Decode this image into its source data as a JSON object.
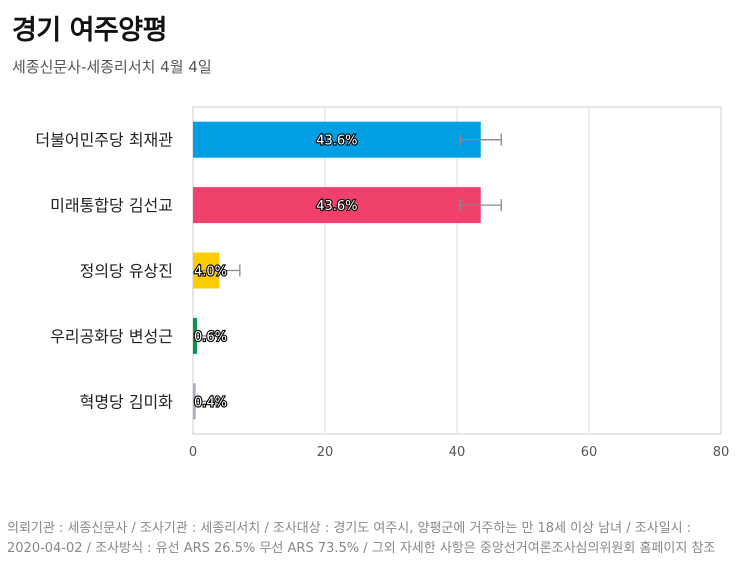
{
  "header": {
    "title": "경기 여주양평",
    "subtitle": "세종신문사-세종리서치 4월 4일"
  },
  "chart_data": {
    "type": "bar",
    "orientation": "horizontal",
    "categories": [
      "더불어민주당 최재관",
      "미래통합당 김선교",
      "정의당 유상진",
      "우리공화당 변성근",
      "혁명당 김미화"
    ],
    "values": [
      43.6,
      43.6,
      4.0,
      0.6,
      0.4
    ],
    "value_labels": [
      "43.6%",
      "43.6%",
      "4.0%",
      "0.6%",
      "0.4%"
    ],
    "colors": [
      "#009fe3",
      "#f0416d",
      "#ffcc00",
      "#00994c",
      "#b0a6cc"
    ],
    "error_margin": 3.1,
    "xlim": [
      0,
      80
    ],
    "xticks": [
      0,
      20,
      40,
      60,
      80
    ],
    "grid": true,
    "legend": "none"
  },
  "footnote": "의뢰기관 : 세종신문사 / 조사기관 : 세종리서치 / 조사대상 : 경기도 여주시, 양평군에 거주하는 만 18세 이상 남녀 / 조사일시 : 2020-04-02 / 조사방식 : 유선 ARS 26.5% 무선 ARS 73.5% / 그외 자세한 사항은 중앙선거여론조사심의위원회 홈페이지 참조"
}
